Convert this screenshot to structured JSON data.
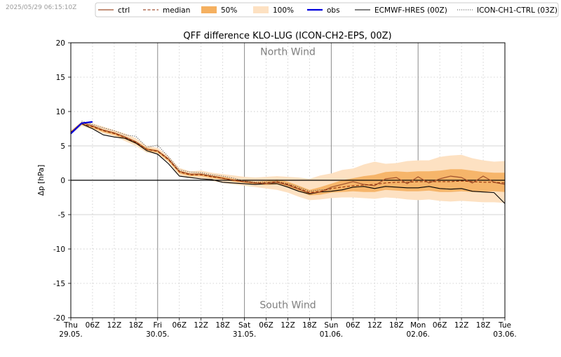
{
  "timestamp": "2025/05/29 06:15:10Z",
  "colors": {
    "ctrl": "#a0522d",
    "median": "#8b2500",
    "band50": "#f5b060",
    "band100": "#fde1c2",
    "obs": "#0000dd",
    "ecmwf": "#000000",
    "ch1": "#555555"
  },
  "chart_data": {
    "type": "line",
    "title": "QFF difference KLO-LUG (ICON-CH2-EPS, 00Z)",
    "ylabel": "Δp [hPa]",
    "xlabel": "",
    "ylim": [
      -20,
      20
    ],
    "xlim": [
      0,
      120
    ],
    "x_unit": "hours since Thu 29.05. 00Z",
    "yticks": [
      -20,
      -15,
      -10,
      -5,
      0,
      5,
      10,
      15,
      20
    ],
    "grid": true,
    "legend_position": "top",
    "annotations": [
      "North Wind",
      "South Wind"
    ],
    "xticks": [
      {
        "x": 0,
        "label": "Thu",
        "date": "29.05."
      },
      {
        "x": 6,
        "label": "06Z"
      },
      {
        "x": 12,
        "label": "12Z"
      },
      {
        "x": 18,
        "label": "18Z"
      },
      {
        "x": 24,
        "label": "Fri",
        "date": "30.05."
      },
      {
        "x": 30,
        "label": "06Z"
      },
      {
        "x": 36,
        "label": "12Z"
      },
      {
        "x": 42,
        "label": "18Z"
      },
      {
        "x": 48,
        "label": "Sat",
        "date": "31.05."
      },
      {
        "x": 54,
        "label": "06Z"
      },
      {
        "x": 60,
        "label": "12Z"
      },
      {
        "x": 66,
        "label": "18Z"
      },
      {
        "x": 72,
        "label": "Sun",
        "date": "01.06."
      },
      {
        "x": 78,
        "label": "06Z"
      },
      {
        "x": 84,
        "label": "12Z"
      },
      {
        "x": 90,
        "label": "18Z"
      },
      {
        "x": 96,
        "label": "Mon",
        "date": "02.06."
      },
      {
        "x": 102,
        "label": "06Z"
      },
      {
        "x": 108,
        "label": "12Z"
      },
      {
        "x": 114,
        "label": "18Z"
      },
      {
        "x": 120,
        "label": "Tue",
        "date": "03.06."
      }
    ],
    "legend": [
      "ctrl",
      "median",
      "50%",
      "100%",
      "obs",
      "ECMWF-HRES (00Z)",
      "ICON-CH1-CTRL (03Z)"
    ],
    "x": [
      0,
      3,
      6,
      9,
      12,
      15,
      18,
      21,
      24,
      27,
      30,
      33,
      36,
      39,
      42,
      45,
      48,
      51,
      54,
      57,
      60,
      63,
      66,
      69,
      72,
      75,
      78,
      81,
      84,
      87,
      90,
      93,
      96,
      99,
      102,
      105,
      108,
      111,
      114,
      117,
      120
    ],
    "series": [
      {
        "name": "median",
        "key": "median",
        "values": [
          7.0,
          8.2,
          7.8,
          7.2,
          6.8,
          6.2,
          5.5,
          4.5,
          4.2,
          3.0,
          1.2,
          0.8,
          0.8,
          0.5,
          0.3,
          0.0,
          -0.2,
          -0.4,
          -0.4,
          -0.2,
          -0.6,
          -1.2,
          -1.8,
          -1.6,
          -1.2,
          -1.0,
          -0.8,
          -0.7,
          -0.6,
          -0.4,
          -0.3,
          -0.3,
          -0.2,
          -0.2,
          -0.2,
          -0.2,
          -0.1,
          -0.2,
          -0.3,
          -0.3,
          -0.4
        ]
      },
      {
        "name": "ctrl",
        "key": "ctrl",
        "values": [
          7.0,
          8.4,
          7.9,
          7.3,
          6.9,
          6.3,
          5.6,
          4.5,
          4.3,
          3.1,
          1.3,
          0.9,
          0.9,
          0.6,
          0.3,
          0.0,
          -0.2,
          -0.4,
          -0.5,
          -0.3,
          -0.7,
          -1.3,
          -1.9,
          -1.7,
          -1.0,
          -0.6,
          -0.2,
          -0.6,
          -0.8,
          0.2,
          0.4,
          -0.5,
          0.5,
          -0.4,
          0.2,
          0.6,
          0.4,
          -0.4,
          0.6,
          -0.3,
          -0.6
        ]
      },
      {
        "name": "ECMWF-HRES (00Z)",
        "key": "ecmwf",
        "values": [
          7.0,
          8.2,
          7.5,
          6.6,
          6.3,
          6.1,
          5.4,
          4.3,
          3.8,
          2.4,
          0.6,
          0.4,
          0.2,
          0.1,
          -0.3,
          -0.4,
          -0.5,
          -0.6,
          -0.5,
          -0.5,
          -1.0,
          -1.6,
          -2.0,
          -1.7,
          -1.6,
          -1.4,
          -1.0,
          -0.9,
          -1.2,
          -0.9,
          -1.0,
          -1.1,
          -1.1,
          -0.9,
          -1.2,
          -1.3,
          -1.2,
          -1.6,
          -1.7,
          -1.8,
          -3.4
        ]
      },
      {
        "name": "ICON-CH1-CTRL (03Z)",
        "key": "ch1",
        "values": [
          null,
          8.6,
          8.1,
          7.6,
          7.2,
          6.6,
          6.4,
          4.8,
          5.1,
          3.4,
          1.5,
          1.2,
          1.1,
          0.8,
          0.6,
          0.3,
          -0.1,
          -0.3,
          -0.3,
          -0.2,
          -0.5,
          -1.0,
          -1.6,
          -1.4,
          -1.3,
          null,
          null,
          null,
          null,
          null,
          null,
          null,
          null,
          null,
          null,
          null,
          null,
          null,
          null,
          null,
          null
        ]
      },
      {
        "name": "obs",
        "key": "obs",
        "values": [
          6.8,
          8.3,
          8.5,
          null,
          null,
          null,
          null,
          null,
          null,
          null,
          null,
          null,
          null,
          null,
          null,
          null,
          null,
          null,
          null,
          null,
          null,
          null,
          null,
          null,
          null,
          null,
          null,
          null,
          null,
          null,
          null,
          null,
          null,
          null,
          null,
          null,
          null,
          null,
          null,
          null,
          null
        ]
      }
    ],
    "bands": [
      {
        "name": "100%",
        "key": "band100",
        "lower": [
          6.7,
          7.9,
          7.4,
          6.8,
          6.4,
          5.7,
          5.0,
          4.0,
          3.8,
          2.6,
          0.6,
          0.3,
          0.2,
          -0.1,
          -0.4,
          -0.6,
          -0.8,
          -1.0,
          -1.2,
          -1.4,
          -1.8,
          -2.4,
          -2.9,
          -2.8,
          -2.6,
          -2.5,
          -2.5,
          -2.6,
          -2.7,
          -2.5,
          -2.6,
          -2.8,
          -2.9,
          -2.8,
          -3.0,
          -3.1,
          -3.0,
          -3.1,
          -3.2,
          -3.2,
          -3.3
        ],
        "upper": [
          7.3,
          8.5,
          8.3,
          7.8,
          7.3,
          6.8,
          6.1,
          5.0,
          4.7,
          3.5,
          1.8,
          1.3,
          1.4,
          1.1,
          0.9,
          0.7,
          0.5,
          0.4,
          0.5,
          0.6,
          0.5,
          0.4,
          0.2,
          0.7,
          1.0,
          1.5,
          1.7,
          2.3,
          2.7,
          2.4,
          2.5,
          2.8,
          2.9,
          2.9,
          3.4,
          3.6,
          3.7,
          3.2,
          2.9,
          2.7,
          2.8
        ]
      },
      {
        "name": "50%",
        "key": "band50",
        "lower": [
          6.9,
          8.1,
          7.6,
          7.0,
          6.6,
          6.0,
          5.3,
          4.3,
          4.0,
          2.8,
          1.0,
          0.6,
          0.6,
          0.3,
          0.1,
          -0.2,
          -0.4,
          -0.6,
          -0.7,
          -0.6,
          -1.0,
          -1.6,
          -2.2,
          -2.1,
          -1.8,
          -1.7,
          -1.6,
          -1.7,
          -1.7,
          -1.4,
          -1.5,
          -1.6,
          -1.6,
          -1.5,
          -1.7,
          -1.7,
          -1.6,
          -1.7,
          -1.7,
          -1.6,
          -1.7
        ]
      },
      {
        "name": "50% upper",
        "key": "band50",
        "upper": [
          7.1,
          8.3,
          8.0,
          7.4,
          7.0,
          6.4,
          5.7,
          4.7,
          4.4,
          3.2,
          1.4,
          1.0,
          1.0,
          0.7,
          0.5,
          0.2,
          0.0,
          -0.2,
          -0.1,
          0.1,
          -0.2,
          -0.8,
          -1.4,
          -1.0,
          -0.5,
          0.0,
          0.3,
          0.6,
          0.8,
          1.2,
          1.3,
          1.2,
          1.3,
          1.3,
          1.4,
          1.6,
          1.6,
          1.4,
          1.2,
          1.1,
          1.1
        ]
      }
    ]
  }
}
